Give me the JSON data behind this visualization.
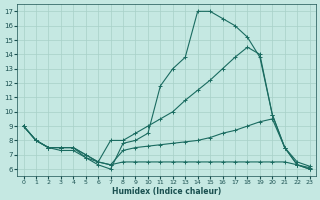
{
  "xlabel": "Humidex (Indice chaleur)",
  "xlim": [
    -0.5,
    23.5
  ],
  "ylim": [
    5.5,
    17.5
  ],
  "xticks": [
    0,
    1,
    2,
    3,
    4,
    5,
    6,
    7,
    8,
    9,
    10,
    11,
    12,
    13,
    14,
    15,
    16,
    17,
    18,
    19,
    20,
    21,
    22,
    23
  ],
  "yticks": [
    6,
    7,
    8,
    9,
    10,
    11,
    12,
    13,
    14,
    15,
    16,
    17
  ],
  "bg_color": "#c5e8e2",
  "line_color": "#1a6b60",
  "grid_color": "#a8d0c8",
  "line1_x": [
    0,
    1,
    2,
    3,
    4,
    5,
    6,
    7,
    8,
    9,
    10,
    11,
    12,
    13,
    14,
    15,
    16,
    17,
    18,
    19,
    20,
    21,
    22,
    23
  ],
  "line1_y": [
    9.0,
    8.0,
    7.5,
    7.5,
    7.5,
    6.8,
    6.3,
    6.0,
    7.8,
    8.0,
    8.5,
    11.8,
    13.0,
    13.8,
    17.0,
    17.0,
    16.5,
    16.0,
    15.2,
    13.8,
    9.8,
    7.5,
    6.3,
    6.0
  ],
  "line2_x": [
    0,
    1,
    2,
    3,
    4,
    5,
    6,
    7,
    8,
    9,
    10,
    11,
    12,
    13,
    14,
    15,
    16,
    17,
    18,
    19,
    20,
    21,
    22,
    23
  ],
  "line2_y": [
    9.0,
    8.0,
    7.5,
    7.5,
    7.5,
    7.0,
    6.5,
    8.0,
    8.0,
    8.5,
    9.0,
    9.5,
    10.0,
    10.8,
    11.5,
    12.2,
    13.0,
    13.8,
    14.5,
    14.0,
    9.8,
    7.5,
    6.3,
    6.0
  ],
  "line3_x": [
    0,
    1,
    2,
    3,
    4,
    5,
    6,
    7,
    8,
    9,
    10,
    11,
    12,
    13,
    14,
    15,
    16,
    17,
    18,
    19,
    20,
    21,
    22,
    23
  ],
  "line3_y": [
    9.0,
    8.0,
    7.5,
    7.5,
    7.5,
    7.0,
    6.5,
    6.3,
    7.3,
    7.5,
    7.6,
    7.7,
    7.8,
    7.9,
    8.0,
    8.2,
    8.5,
    8.7,
    9.0,
    9.3,
    9.5,
    7.5,
    6.5,
    6.2
  ],
  "line4_x": [
    0,
    1,
    2,
    3,
    4,
    5,
    6,
    7,
    8,
    9,
    10,
    11,
    12,
    13,
    14,
    15,
    16,
    17,
    18,
    19,
    20,
    21,
    22,
    23
  ],
  "line4_y": [
    9.0,
    8.0,
    7.5,
    7.3,
    7.3,
    6.8,
    6.5,
    6.3,
    6.5,
    6.5,
    6.5,
    6.5,
    6.5,
    6.5,
    6.5,
    6.5,
    6.5,
    6.5,
    6.5,
    6.5,
    6.5,
    6.5,
    6.3,
    6.1
  ]
}
